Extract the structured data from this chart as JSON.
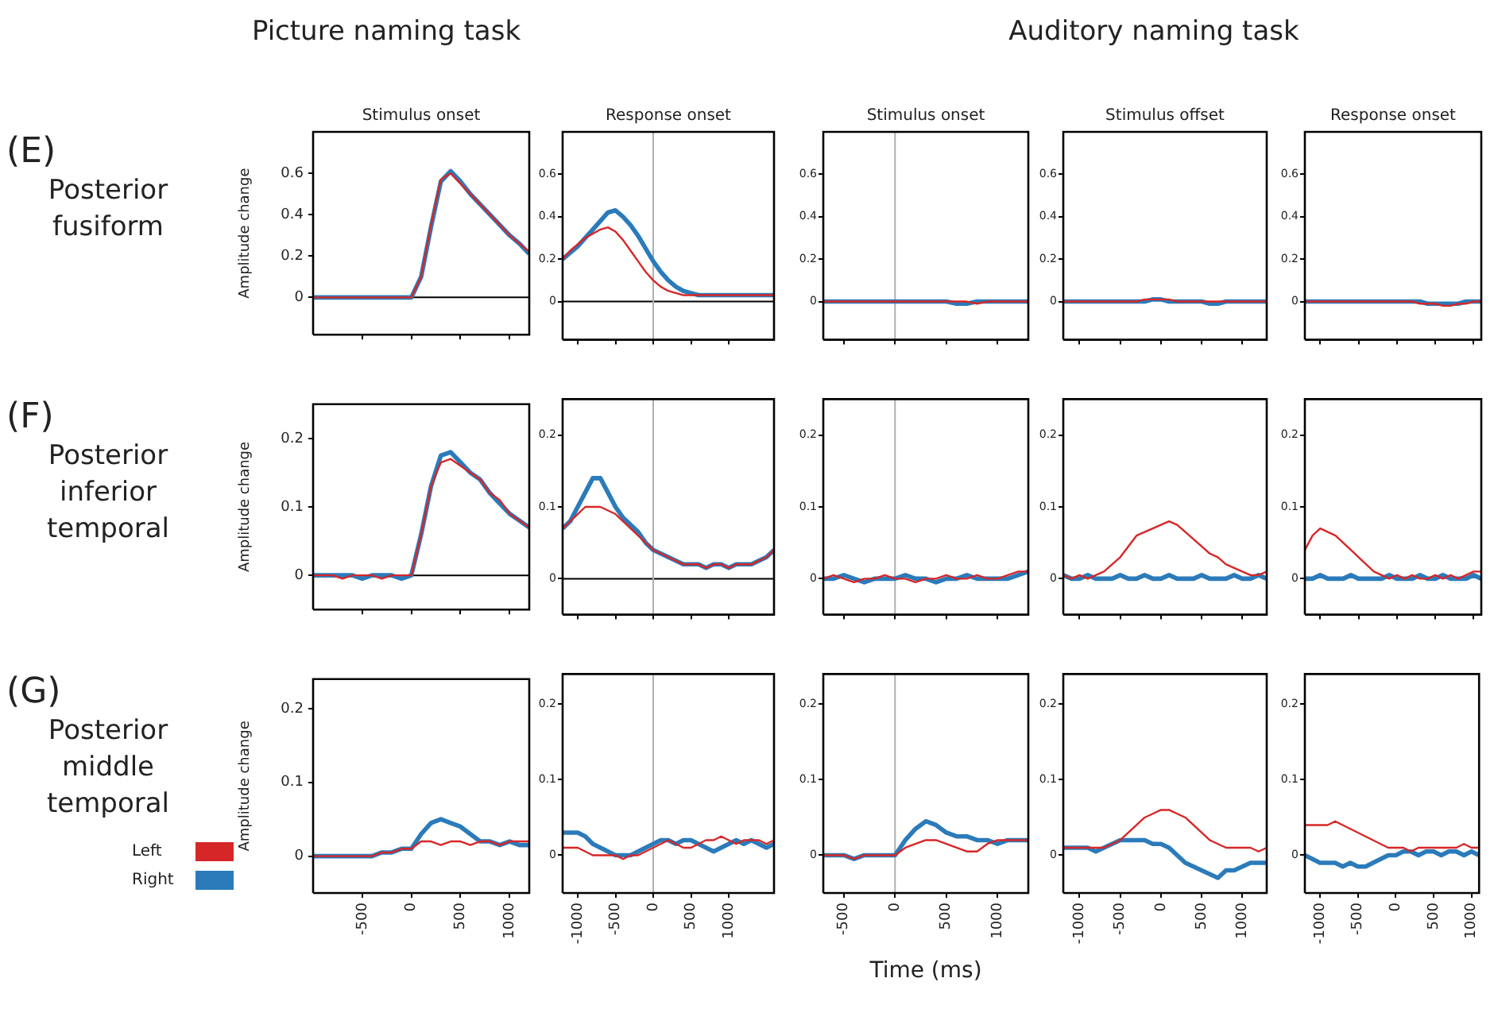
{
  "chart_data": [
    {
      "type": "line",
      "title": "Stimulus onset",
      "subtitle": "Picture naming task",
      "ylabel": "Amplitude change",
      "annotations": [
        "(E)",
        "Posterior fusiform"
      ],
      "x": [
        -1000,
        -900,
        -800,
        -700,
        -600,
        -500,
        -400,
        -300,
        -200,
        -100,
        0,
        100,
        200,
        300,
        400,
        500,
        600,
        700,
        800,
        900,
        1000,
        1100,
        1200
      ],
      "xlim": [
        -1000,
        1200
      ],
      "xticks": [
        -500,
        0,
        500,
        1000
      ],
      "ylim": [
        -0.18,
        0.8
      ],
      "yticks": [
        0,
        0.2,
        0.4,
        0.6
      ],
      "tick_labels": "y",
      "ref_lines": [
        {
          "axis": "y",
          "value": 0,
          "color": "#000000"
        }
      ],
      "series": [
        {
          "color": "#d62728",
          "values": [
            0,
            0,
            0,
            0,
            0,
            0,
            0,
            0,
            0,
            0,
            0,
            0.1,
            0.35,
            0.57,
            0.6,
            0.55,
            0.5,
            0.45,
            0.4,
            0.35,
            0.3,
            0.26,
            0.22
          ]
        },
        {
          "color": "#2b7bba",
          "values": [
            0,
            0,
            0,
            0,
            0,
            0,
            0,
            0,
            0,
            0,
            0,
            0.1,
            0.34,
            0.56,
            0.61,
            0.56,
            0.5,
            0.45,
            0.4,
            0.35,
            0.3,
            0.26,
            0.21
          ]
        }
      ]
    },
    {
      "type": "line",
      "title": "Response onset",
      "x": [
        -1200,
        -1100,
        -1000,
        -900,
        -800,
        -700,
        -600,
        -500,
        -400,
        -300,
        -200,
        -100,
        0,
        100,
        200,
        300,
        400,
        500,
        600,
        700,
        800,
        900,
        1000,
        1100,
        1200,
        1300,
        1400,
        1500,
        1600
      ],
      "xlim": [
        -1200,
        1600
      ],
      "xticks": [
        -1000,
        -500,
        0,
        500,
        1000
      ],
      "ylim": [
        -0.18,
        0.8
      ],
      "yticks": [
        0,
        0.2,
        0.4,
        0.6
      ],
      "tick_labels": "y",
      "ref_lines": [
        {
          "axis": "y",
          "value": 0,
          "color": "#000000"
        },
        {
          "axis": "x",
          "value": 0,
          "color": "#b0b0b0"
        }
      ],
      "series": [
        {
          "color": "#d62728",
          "values": [
            0.2,
            0.24,
            0.27,
            0.3,
            0.32,
            0.34,
            0.35,
            0.33,
            0.29,
            0.24,
            0.19,
            0.14,
            0.1,
            0.07,
            0.05,
            0.04,
            0.03,
            0.03,
            0.03,
            0.03,
            0.03,
            0.03,
            0.03,
            0.03,
            0.03,
            0.03,
            0.03,
            0.03,
            0.03
          ]
        },
        {
          "color": "#2b7bba",
          "values": [
            0.2,
            0.23,
            0.26,
            0.3,
            0.34,
            0.38,
            0.42,
            0.43,
            0.4,
            0.36,
            0.31,
            0.25,
            0.19,
            0.14,
            0.1,
            0.07,
            0.05,
            0.04,
            0.03,
            0.03,
            0.03,
            0.03,
            0.03,
            0.03,
            0.03,
            0.03,
            0.03,
            0.03,
            0.03
          ]
        }
      ]
    },
    {
      "type": "line",
      "title": "Stimulus onset",
      "x": [
        -700,
        -600,
        -500,
        -400,
        -300,
        -200,
        -100,
        0,
        100,
        200,
        300,
        400,
        500,
        600,
        700,
        800,
        900,
        1000,
        1100,
        1200,
        1300
      ],
      "xlim": [
        -700,
        1300
      ],
      "xticks": [
        -500,
        0,
        500,
        1000
      ],
      "ylim": [
        -0.18,
        0.8
      ],
      "yticks": [
        0,
        0.2,
        0.4,
        0.6
      ],
      "tick_labels": "y",
      "ref_lines": [
        {
          "axis": "x",
          "value": 0,
          "color": "#b0b0b0"
        }
      ],
      "series": [
        {
          "color": "#d62728",
          "values": [
            0,
            0,
            0,
            0,
            0,
            0,
            0,
            0,
            0,
            0,
            0,
            0,
            0,
            0,
            0,
            -0.01,
            0,
            0,
            0,
            0,
            0
          ]
        },
        {
          "color": "#2b7bba",
          "values": [
            0,
            0,
            0,
            0,
            0,
            0,
            0,
            0,
            0,
            0,
            0,
            0,
            0,
            -0.01,
            -0.01,
            0,
            0,
            0,
            0,
            0,
            0
          ]
        }
      ]
    },
    {
      "type": "line",
      "title": "Stimulus offset",
      "subtitle": "Auditory naming task",
      "x": [
        -1200,
        -1100,
        -1000,
        -900,
        -800,
        -700,
        -600,
        -500,
        -400,
        -300,
        -200,
        -100,
        0,
        100,
        200,
        300,
        400,
        500,
        600,
        700,
        800,
        900,
        1000,
        1100,
        1200,
        1300
      ],
      "xlim": [
        -1200,
        1300
      ],
      "xticks": [
        -1000,
        -500,
        0,
        500,
        1000
      ],
      "ylim": [
        -0.18,
        0.8
      ],
      "yticks": [
        0,
        0.2,
        0.4,
        0.6
      ],
      "tick_labels": "y",
      "series": [
        {
          "color": "#d62728",
          "values": [
            0,
            0,
            0,
            0,
            0,
            0,
            0,
            0,
            0,
            0,
            0.01,
            0.01,
            0.01,
            0.01,
            0,
            0,
            0,
            0,
            0,
            0,
            0,
            0,
            0,
            0,
            0,
            0
          ]
        },
        {
          "color": "#2b7bba",
          "values": [
            0,
            0,
            0,
            0,
            0,
            0,
            0,
            0,
            0,
            0,
            0,
            0.01,
            0.01,
            0,
            0,
            0,
            0,
            0,
            -0.01,
            -0.01,
            0,
            0,
            0,
            0,
            0,
            0
          ]
        }
      ]
    },
    {
      "type": "line",
      "title": "Response onset",
      "x": [
        -1200,
        -1100,
        -1000,
        -900,
        -800,
        -700,
        -600,
        -500,
        -400,
        -300,
        -200,
        -100,
        0,
        100,
        200,
        300,
        400,
        500,
        600,
        700,
        800,
        900,
        1000,
        1100
      ],
      "xlim": [
        -1200,
        1100
      ],
      "xticks": [
        -1000,
        -500,
        0,
        500,
        1000
      ],
      "ylim": [
        -0.18,
        0.8
      ],
      "yticks": [
        0,
        0.2,
        0.4,
        0.6
      ],
      "tick_labels": "y",
      "series": [
        {
          "color": "#d62728",
          "values": [
            0,
            0,
            0,
            0,
            0,
            0,
            0,
            0,
            0,
            0,
            0,
            0,
            0,
            0,
            0,
            -0.01,
            -0.01,
            -0.01,
            -0.02,
            -0.02,
            -0.01,
            -0.01,
            0,
            0
          ]
        },
        {
          "color": "#2b7bba",
          "values": [
            0,
            0,
            0,
            0,
            0,
            0,
            0,
            0,
            0,
            0,
            0,
            0,
            0,
            0,
            0,
            0,
            -0.01,
            -0.01,
            -0.01,
            -0.01,
            -0.01,
            0,
            0,
            0
          ]
        }
      ]
    },
    {
      "type": "line",
      "ylabel": "Amplitude change",
      "annotations": [
        "(F)",
        "Posterior inferior temporal"
      ],
      "x": [
        -1000,
        -900,
        -800,
        -700,
        -600,
        -500,
        -400,
        -300,
        -200,
        -100,
        0,
        100,
        200,
        300,
        400,
        500,
        600,
        700,
        800,
        900,
        1000,
        1100,
        1200
      ],
      "xlim": [
        -1000,
        1200
      ],
      "xticks": [
        -500,
        0,
        500,
        1000
      ],
      "ylim": [
        -0.05,
        0.25
      ],
      "yticks": [
        0,
        0.1,
        0.2
      ],
      "tick_labels": "y",
      "ref_lines": [
        {
          "axis": "y",
          "value": 0,
          "color": "#000000"
        }
      ],
      "series": [
        {
          "color": "#d62728",
          "values": [
            0,
            0,
            0,
            -0.005,
            0,
            0,
            0,
            -0.005,
            0,
            0,
            0,
            0.06,
            0.13,
            0.165,
            0.17,
            0.16,
            0.15,
            0.14,
            0.12,
            0.11,
            0.09,
            0.08,
            0.07
          ]
        },
        {
          "color": "#2b7bba",
          "values": [
            0,
            0,
            0,
            0,
            0,
            -0.005,
            0,
            0,
            0,
            -0.005,
            0,
            0.06,
            0.13,
            0.175,
            0.18,
            0.165,
            0.15,
            0.14,
            0.12,
            0.105,
            0.09,
            0.08,
            0.07
          ]
        }
      ]
    },
    {
      "type": "line",
      "x": [
        -1200,
        -1100,
        -1000,
        -900,
        -800,
        -700,
        -600,
        -500,
        -400,
        -300,
        -200,
        -100,
        0,
        100,
        200,
        300,
        400,
        500,
        600,
        700,
        800,
        900,
        1000,
        1100,
        1200,
        1300,
        1400,
        1500,
        1600
      ],
      "xlim": [
        -1200,
        1600
      ],
      "xticks": [
        -1000,
        -500,
        0,
        500,
        1000
      ],
      "ylim": [
        -0.05,
        0.25
      ],
      "yticks": [
        0,
        0.1,
        0.2
      ],
      "tick_labels": "y",
      "ref_lines": [
        {
          "axis": "y",
          "value": 0,
          "color": "#000000"
        },
        {
          "axis": "x",
          "value": 0,
          "color": "#b0b0b0"
        }
      ],
      "series": [
        {
          "color": "#d62728",
          "values": [
            0.07,
            0.08,
            0.09,
            0.1,
            0.1,
            0.1,
            0.095,
            0.09,
            0.08,
            0.07,
            0.06,
            0.05,
            0.04,
            0.035,
            0.03,
            0.025,
            0.02,
            0.02,
            0.02,
            0.015,
            0.02,
            0.02,
            0.015,
            0.02,
            0.02,
            0.02,
            0.025,
            0.03,
            0.04
          ]
        },
        {
          "color": "#2b7bba",
          "values": [
            0.07,
            0.08,
            0.1,
            0.12,
            0.14,
            0.14,
            0.12,
            0.1,
            0.085,
            0.075,
            0.065,
            0.05,
            0.04,
            0.035,
            0.03,
            0.025,
            0.02,
            0.02,
            0.02,
            0.015,
            0.02,
            0.02,
            0.015,
            0.02,
            0.02,
            0.02,
            0.025,
            0.03,
            0.04
          ]
        }
      ]
    },
    {
      "type": "line",
      "x": [
        -700,
        -600,
        -500,
        -400,
        -300,
        -200,
        -100,
        0,
        100,
        200,
        300,
        400,
        500,
        600,
        700,
        800,
        900,
        1000,
        1100,
        1200,
        1300
      ],
      "xlim": [
        -700,
        1300
      ],
      "xticks": [
        -500,
        0,
        500,
        1000
      ],
      "ylim": [
        -0.05,
        0.25
      ],
      "yticks": [
        0,
        0.1,
        0.2
      ],
      "tick_labels": "y",
      "ref_lines": [
        {
          "axis": "x",
          "value": 0,
          "color": "#b0b0b0"
        }
      ],
      "series": [
        {
          "color": "#d62728",
          "values": [
            0,
            0.005,
            0,
            -0.005,
            0,
            0,
            0.005,
            0,
            0,
            -0.005,
            0,
            0,
            0.005,
            0,
            0,
            0.005,
            0,
            0,
            0.005,
            0.01,
            0.01
          ]
        },
        {
          "color": "#2b7bba",
          "values": [
            0,
            0,
            0.005,
            0,
            -0.005,
            0,
            0,
            0,
            0.005,
            0,
            0,
            -0.005,
            0,
            0,
            0.005,
            0,
            0,
            0,
            0,
            0.005,
            0.01
          ]
        }
      ]
    },
    {
      "type": "line",
      "x": [
        -1200,
        -1100,
        -1000,
        -900,
        -800,
        -700,
        -600,
        -500,
        -400,
        -300,
        -200,
        -100,
        0,
        100,
        200,
        300,
        400,
        500,
        600,
        700,
        800,
        900,
        1000,
        1100,
        1200,
        1300
      ],
      "xlim": [
        -1200,
        1300
      ],
      "xticks": [
        -1000,
        -500,
        0,
        500,
        1000
      ],
      "ylim": [
        -0.05,
        0.25
      ],
      "yticks": [
        0,
        0.1,
        0.2
      ],
      "tick_labels": "y",
      "series": [
        {
          "color": "#d62728",
          "values": [
            0.005,
            0,
            0.005,
            0,
            0.005,
            0.01,
            0.02,
            0.03,
            0.045,
            0.06,
            0.065,
            0.07,
            0.075,
            0.08,
            0.075,
            0.065,
            0.055,
            0.045,
            0.035,
            0.03,
            0.02,
            0.015,
            0.01,
            0.005,
            0.005,
            0.01
          ]
        },
        {
          "color": "#2b7bba",
          "values": [
            0.005,
            0,
            0,
            0.005,
            0,
            0,
            0,
            0.005,
            0,
            0,
            0.005,
            0,
            0,
            0.005,
            0,
            0,
            0,
            0.005,
            0,
            0,
            0,
            0.005,
            0,
            0,
            0.005,
            0
          ]
        }
      ]
    },
    {
      "type": "line",
      "x": [
        -1200,
        -1100,
        -1000,
        -900,
        -800,
        -700,
        -600,
        -500,
        -400,
        -300,
        -200,
        -100,
        0,
        100,
        200,
        300,
        400,
        500,
        600,
        700,
        800,
        900,
        1000,
        1100
      ],
      "xlim": [
        -1200,
        1100
      ],
      "xticks": [
        -1000,
        -500,
        0,
        500,
        1000
      ],
      "ylim": [
        -0.05,
        0.25
      ],
      "yticks": [
        0,
        0.1,
        0.2
      ],
      "tick_labels": "y",
      "series": [
        {
          "color": "#d62728",
          "values": [
            0.04,
            0.06,
            0.07,
            0.065,
            0.06,
            0.05,
            0.04,
            0.03,
            0.02,
            0.01,
            0.005,
            0,
            0.005,
            0,
            0.005,
            0,
            0,
            0.005,
            0,
            0.005,
            0,
            0.005,
            0.01,
            0.01
          ]
        },
        {
          "color": "#2b7bba",
          "values": [
            0,
            0,
            0.005,
            0,
            0,
            0,
            0.005,
            0,
            0,
            0,
            0,
            0.005,
            0,
            0,
            0,
            0.005,
            0,
            0,
            0.005,
            0,
            0,
            0,
            0.005,
            0
          ]
        }
      ]
    },
    {
      "type": "line",
      "ylabel": "Amplitude change",
      "annotations": [
        "(G)",
        "Posterior middle temporal"
      ],
      "legend": "left",
      "x": [
        -1000,
        -900,
        -800,
        -700,
        -600,
        -500,
        -400,
        -300,
        -200,
        -100,
        0,
        100,
        200,
        300,
        400,
        500,
        600,
        700,
        800,
        900,
        1000,
        1100,
        1200
      ],
      "xlim": [
        -1000,
        1200
      ],
      "xticks": [
        -500,
        0,
        500,
        1000
      ],
      "ylim": [
        -0.05,
        0.24
      ],
      "yticks": [
        0,
        0.1,
        0.2
      ],
      "series": [
        {
          "name": "Left",
          "color": "#d62728",
          "values": [
            0,
            0,
            0,
            0,
            0,
            0,
            0,
            0.005,
            0.005,
            0.01,
            0.01,
            0.02,
            0.02,
            0.015,
            0.02,
            0.02,
            0.015,
            0.02,
            0.02,
            0.015,
            0.02,
            0.02,
            0.02
          ]
        },
        {
          "name": "Right",
          "color": "#2b7bba",
          "values": [
            0,
            0,
            0,
            0,
            0,
            0,
            0,
            0.005,
            0.005,
            0.01,
            0.01,
            0.03,
            0.045,
            0.05,
            0.045,
            0.04,
            0.03,
            0.02,
            0.02,
            0.015,
            0.02,
            0.015,
            0.015
          ]
        }
      ]
    },
    {
      "type": "line",
      "x": [
        -1200,
        -1100,
        -1000,
        -900,
        -800,
        -700,
        -600,
        -500,
        -400,
        -300,
        -200,
        -100,
        0,
        100,
        200,
        300,
        400,
        500,
        600,
        700,
        800,
        900,
        1000,
        1100,
        1200,
        1300,
        1400,
        1500,
        1600
      ],
      "xlim": [
        -1200,
        1600
      ],
      "xticks": [
        -1000,
        -500,
        0,
        500,
        1000
      ],
      "ylim": [
        -0.05,
        0.24
      ],
      "yticks": [
        0,
        0.1,
        0.2
      ],
      "ref_lines": [
        {
          "axis": "x",
          "value": 0,
          "color": "#b0b0b0"
        }
      ],
      "series": [
        {
          "color": "#d62728",
          "values": [
            0.01,
            0.01,
            0.01,
            0.005,
            0,
            0,
            0,
            0,
            -0.005,
            0,
            0,
            0.005,
            0.01,
            0.015,
            0.02,
            0.015,
            0.01,
            0.01,
            0.015,
            0.02,
            0.02,
            0.025,
            0.02,
            0.015,
            0.02,
            0.02,
            0.02,
            0.015,
            0.02
          ]
        },
        {
          "color": "#2b7bba",
          "values": [
            0.03,
            0.03,
            0.03,
            0.025,
            0.015,
            0.01,
            0.005,
            0,
            0,
            0,
            0.005,
            0.01,
            0.015,
            0.02,
            0.02,
            0.015,
            0.02,
            0.02,
            0.015,
            0.01,
            0.005,
            0.01,
            0.015,
            0.02,
            0.015,
            0.02,
            0.015,
            0.01,
            0.015
          ]
        }
      ]
    },
    {
      "type": "line",
      "xlabel": "Time (ms)",
      "x": [
        -700,
        -600,
        -500,
        -400,
        -300,
        -200,
        -100,
        0,
        100,
        200,
        300,
        400,
        500,
        600,
        700,
        800,
        900,
        1000,
        1100,
        1200,
        1300
      ],
      "xlim": [
        -700,
        1300
      ],
      "xticks": [
        -500,
        0,
        500,
        1000
      ],
      "ylim": [
        -0.05,
        0.24
      ],
      "yticks": [
        0,
        0.1,
        0.2
      ],
      "ref_lines": [
        {
          "axis": "x",
          "value": 0,
          "color": "#b0b0b0"
        }
      ],
      "series": [
        {
          "color": "#d62728",
          "values": [
            0,
            0,
            0,
            -0.005,
            0,
            0,
            0,
            0,
            0.01,
            0.015,
            0.02,
            0.02,
            0.015,
            0.01,
            0.005,
            0.005,
            0.015,
            0.02,
            0.02,
            0.02,
            0.02
          ]
        },
        {
          "color": "#2b7bba",
          "values": [
            0,
            0,
            0,
            -0.005,
            0,
            0,
            0,
            0,
            0.02,
            0.035,
            0.045,
            0.04,
            0.03,
            0.025,
            0.025,
            0.02,
            0.02,
            0.015,
            0.02,
            0.02,
            0.02
          ]
        }
      ]
    },
    {
      "type": "line",
      "x": [
        -1200,
        -1100,
        -1000,
        -900,
        -800,
        -700,
        -600,
        -500,
        -400,
        -300,
        -200,
        -100,
        0,
        100,
        200,
        300,
        400,
        500,
        600,
        700,
        800,
        900,
        1000,
        1100,
        1200,
        1300
      ],
      "xlim": [
        -1200,
        1300
      ],
      "xticks": [
        -1000,
        -500,
        0,
        500,
        1000
      ],
      "ylim": [
        -0.05,
        0.24
      ],
      "yticks": [
        0,
        0.1,
        0.2
      ],
      "series": [
        {
          "color": "#d62728",
          "values": [
            0.01,
            0.01,
            0.01,
            0.01,
            0.01,
            0.01,
            0.015,
            0.02,
            0.03,
            0.04,
            0.05,
            0.055,
            0.06,
            0.06,
            0.055,
            0.05,
            0.04,
            0.03,
            0.02,
            0.015,
            0.01,
            0.01,
            0.01,
            0.01,
            0.005,
            0.01
          ]
        },
        {
          "color": "#2b7bba",
          "values": [
            0.01,
            0.01,
            0.01,
            0.01,
            0.005,
            0.01,
            0.015,
            0.02,
            0.02,
            0.02,
            0.02,
            0.015,
            0.015,
            0.01,
            0,
            -0.01,
            -0.015,
            -0.02,
            -0.025,
            -0.03,
            -0.02,
            -0.02,
            -0.015,
            -0.01,
            -0.01,
            -0.01
          ]
        }
      ]
    },
    {
      "type": "line",
      "x": [
        -1200,
        -1100,
        -1000,
        -900,
        -800,
        -700,
        -600,
        -500,
        -400,
        -300,
        -200,
        -100,
        0,
        100,
        200,
        300,
        400,
        500,
        600,
        700,
        800,
        900,
        1000,
        1100
      ],
      "xlim": [
        -1200,
        1100
      ],
      "xticks": [
        -1000,
        -500,
        0,
        500,
        1000
      ],
      "ylim": [
        -0.05,
        0.24
      ],
      "yticks": [
        0,
        0.1,
        0.2
      ],
      "series": [
        {
          "color": "#d62728",
          "values": [
            0.04,
            0.04,
            0.04,
            0.04,
            0.045,
            0.04,
            0.035,
            0.03,
            0.025,
            0.02,
            0.015,
            0.01,
            0.01,
            0.01,
            0.005,
            0.01,
            0.01,
            0.01,
            0.01,
            0.01,
            0.01,
            0.015,
            0.01,
            0.01
          ]
        },
        {
          "color": "#2b7bba",
          "values": [
            0,
            -0.005,
            -0.01,
            -0.01,
            -0.01,
            -0.015,
            -0.01,
            -0.015,
            -0.015,
            -0.01,
            -0.005,
            0,
            0,
            0.005,
            0.005,
            0,
            0.005,
            0.005,
            0,
            0.005,
            0.005,
            0,
            0.005,
            0
          ]
        }
      ]
    }
  ]
}
